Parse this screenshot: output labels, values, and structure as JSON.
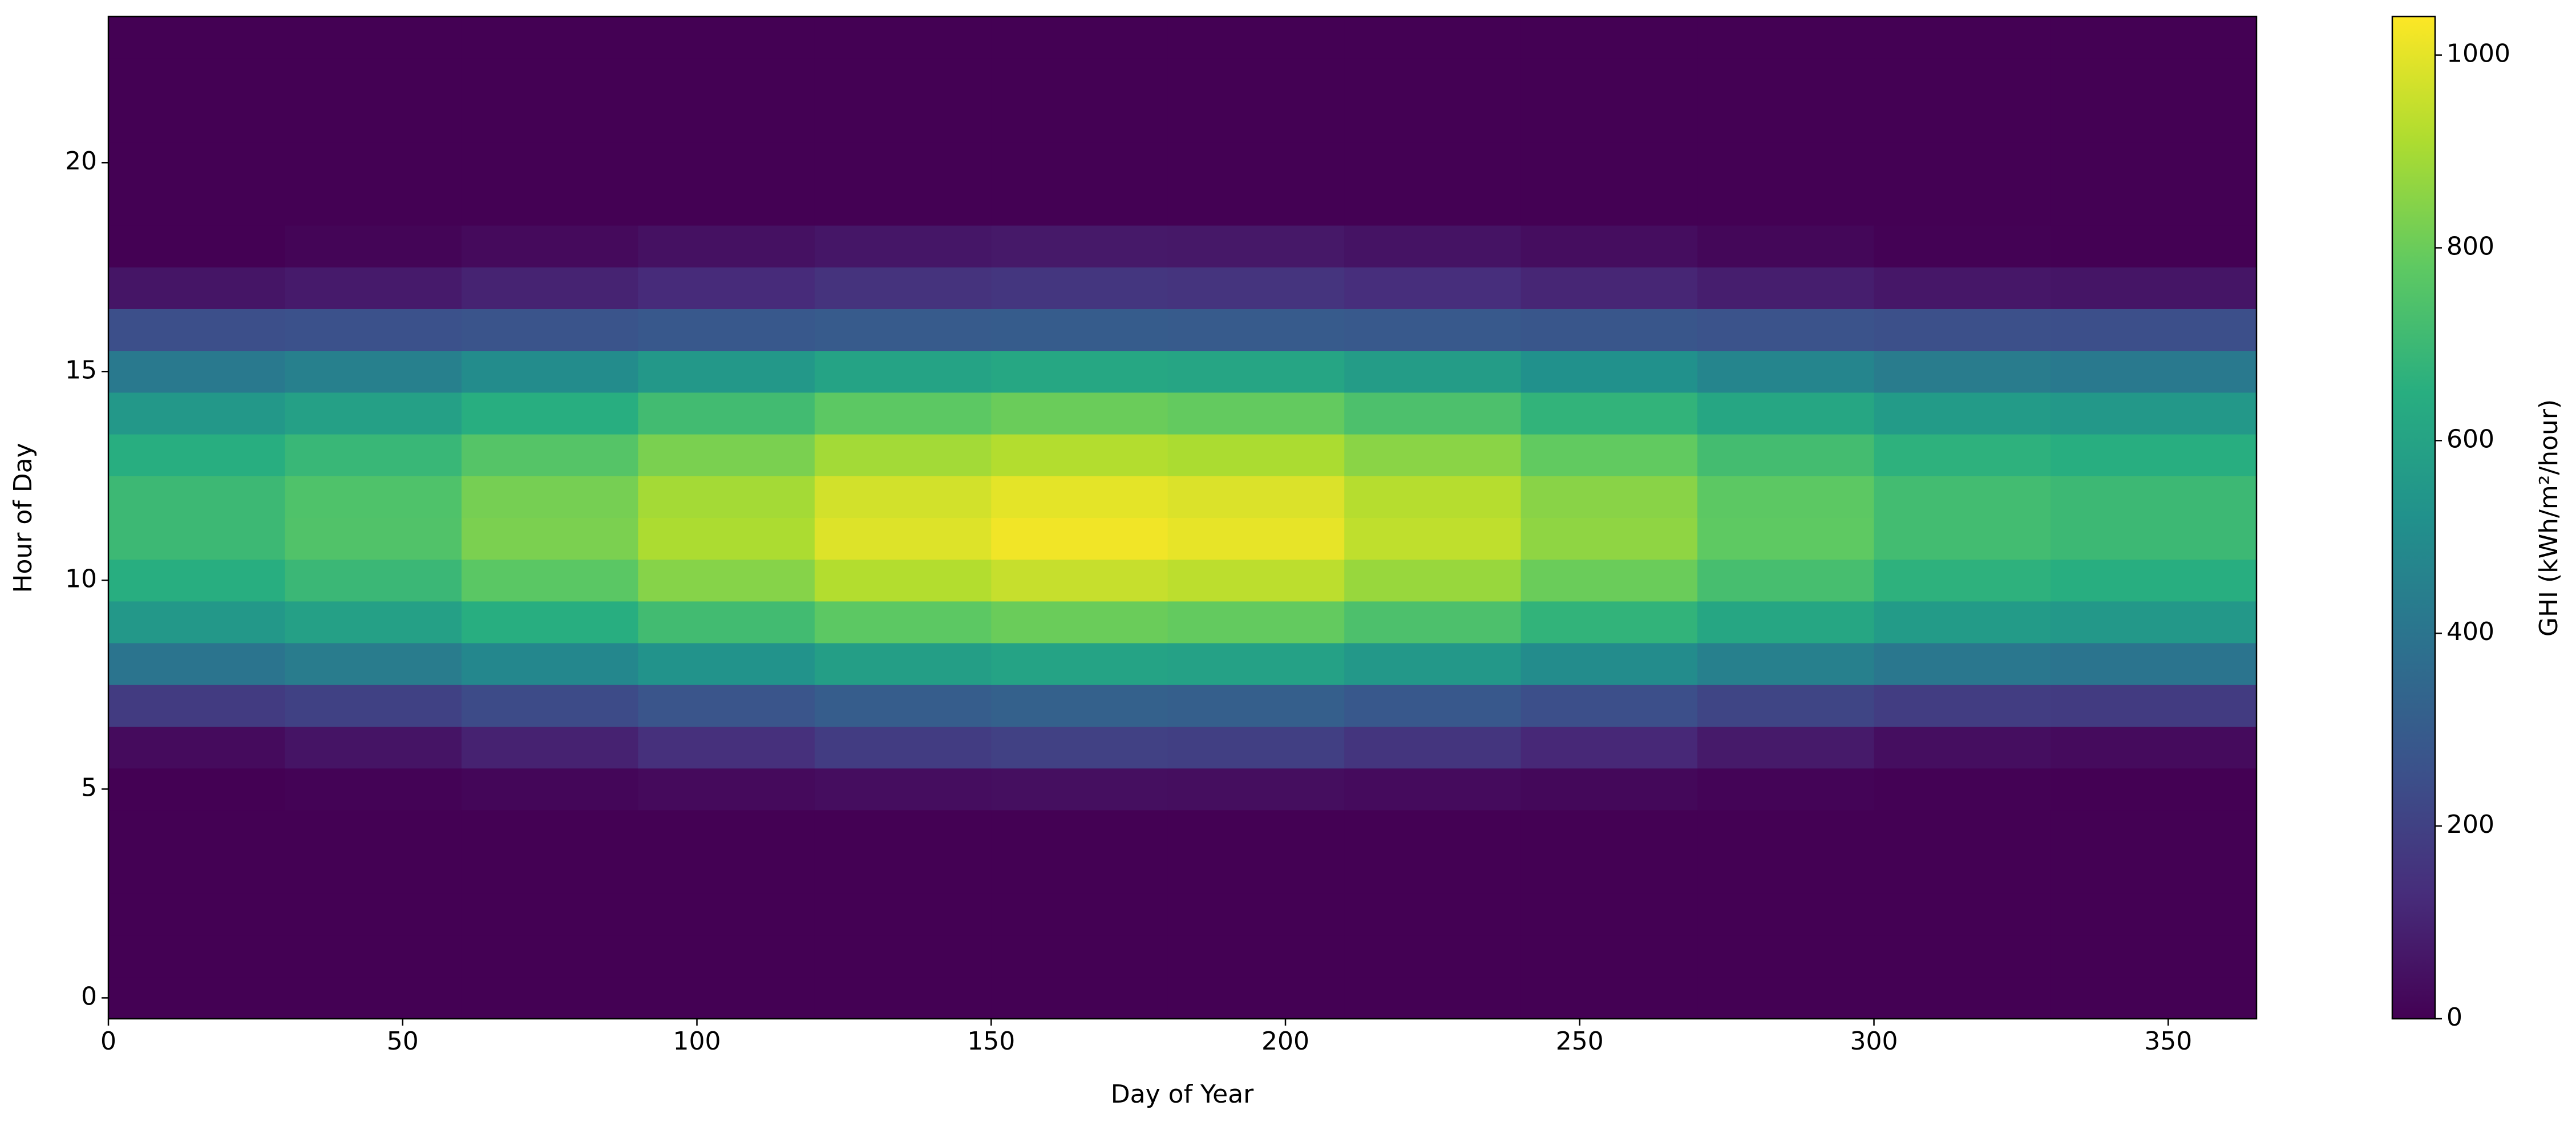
{
  "chart_data": {
    "type": "heatmap",
    "x_label": "Day of Year",
    "y_label": "Hour of Day",
    "colorbar_label": "GHI (kWh/m²/hour)",
    "cmap": "viridis",
    "x_bins": [
      0,
      30,
      60,
      90,
      120,
      150,
      180,
      210,
      240,
      270,
      300,
      330,
      360,
      365
    ],
    "y": [
      0,
      1,
      2,
      3,
      4,
      5,
      6,
      7,
      8,
      9,
      10,
      11,
      12,
      13,
      14,
      15,
      16,
      17,
      18,
      19,
      20,
      21,
      22,
      23
    ],
    "values": [
      [
        0,
        0,
        0,
        0,
        0,
        0,
        0,
        0,
        0,
        0,
        0,
        0,
        0
      ],
      [
        0,
        0,
        0,
        0,
        0,
        0,
        0,
        0,
        0,
        0,
        0,
        0,
        0
      ],
      [
        0,
        0,
        0,
        0,
        0,
        0,
        0,
        0,
        0,
        0,
        0,
        0,
        0
      ],
      [
        0,
        0,
        0,
        0,
        0,
        0,
        0,
        0,
        0,
        0,
        0,
        0,
        0
      ],
      [
        0,
        0,
        0,
        0,
        0,
        0,
        0,
        0,
        0,
        0,
        0,
        0,
        0
      ],
      [
        0,
        6,
        16,
        26,
        36,
        40,
        38,
        30,
        20,
        10,
        2,
        0,
        0
      ],
      [
        30,
        56,
        98,
        141,
        183,
        200,
        192,
        158,
        115,
        73,
        39,
        30,
        30
      ],
      [
        180,
        201,
        236,
        271,
        306,
        320,
        313,
        285,
        250,
        215,
        187,
        180,
        180
      ],
      [
        400,
        430,
        480,
        530,
        580,
        600,
        590,
        550,
        500,
        450,
        410,
        400,
        400
      ],
      [
        550,
        588,
        650,
        713,
        775,
        800,
        788,
        738,
        675,
        613,
        563,
        550,
        550
      ],
      [
        650,
        695,
        770,
        845,
        920,
        950,
        935,
        875,
        800,
        725,
        665,
        650,
        650
      ],
      [
        700,
        748,
        828,
        908,
        988,
        1020,
        1004,
        940,
        860,
        780,
        716,
        700,
        700
      ],
      [
        700,
        745,
        820,
        895,
        970,
        1000,
        985,
        925,
        850,
        775,
        715,
        700,
        700
      ],
      [
        650,
        691,
        758,
        826,
        893,
        920,
        907,
        853,
        785,
        718,
        664,
        650,
        650
      ],
      [
        550,
        588,
        650,
        713,
        775,
        800,
        788,
        738,
        675,
        613,
        563,
        550,
        550
      ],
      [
        420,
        450,
        500,
        550,
        600,
        620,
        610,
        570,
        520,
        470,
        430,
        420,
        420
      ],
      [
        250,
        258,
        270,
        283,
        295,
        300,
        298,
        288,
        275,
        263,
        253,
        250,
        250
      ],
      [
        60,
        75,
        100,
        125,
        150,
        160,
        155,
        135,
        110,
        85,
        65,
        60,
        60
      ],
      [
        0,
        11,
        28,
        46,
        63,
        70,
        67,
        53,
        35,
        18,
        4,
        0,
        0
      ],
      [
        0,
        0,
        0,
        0,
        0,
        0,
        0,
        0,
        0,
        0,
        0,
        0,
        0
      ],
      [
        0,
        0,
        0,
        0,
        0,
        0,
        0,
        0,
        0,
        0,
        0,
        0,
        0
      ],
      [
        0,
        0,
        0,
        0,
        0,
        0,
        0,
        0,
        0,
        0,
        0,
        0,
        0
      ],
      [
        0,
        0,
        0,
        0,
        0,
        0,
        0,
        0,
        0,
        0,
        0,
        0,
        0
      ],
      [
        0,
        0,
        0,
        0,
        0,
        0,
        0,
        0,
        0,
        0,
        0,
        0,
        0
      ]
    ],
    "xlim": [
      0,
      365
    ],
    "xticks": [
      0,
      50,
      100,
      150,
      200,
      250,
      300,
      350
    ],
    "ylim": [
      -0.5,
      23.5
    ],
    "yticks": [
      0,
      5,
      10,
      15,
      20
    ],
    "clim": [
      0,
      1040
    ],
    "cticks": [
      0,
      200,
      400,
      600,
      800,
      1000
    ]
  }
}
